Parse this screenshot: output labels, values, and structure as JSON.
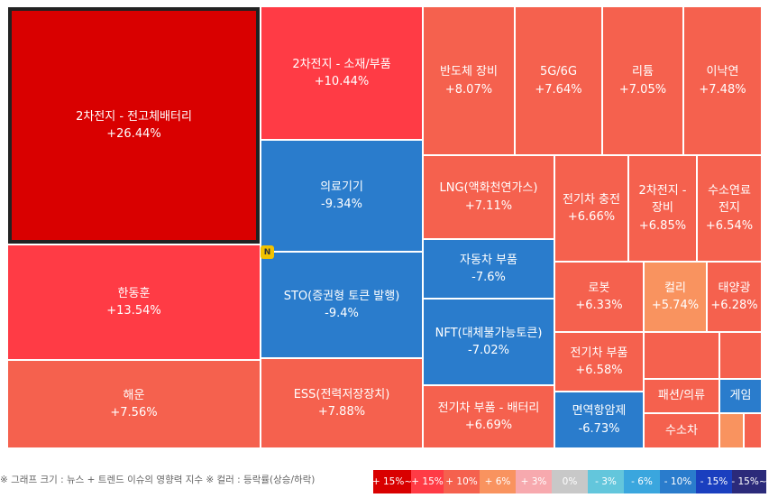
{
  "chart_data": {
    "type": "treemap",
    "tiles": [
      {
        "name": "2차전지 - 전고체배터리",
        "change": "+26.44%",
        "value": 26.44,
        "color": "#d90000",
        "selected": true
      },
      {
        "name": "2차전지 - 소재/부품",
        "change": "+10.44%",
        "value": 10.44,
        "color": "#ff3b45"
      },
      {
        "name": "반도체 장비",
        "change": "+8.07%",
        "value": 8.07,
        "color": "#f5614e"
      },
      {
        "name": "5G/6G",
        "change": "+7.64%",
        "value": 7.64,
        "color": "#f5614e"
      },
      {
        "name": "리튬",
        "change": "+7.05%",
        "value": 7.05,
        "color": "#f5614e"
      },
      {
        "name": "이낙연",
        "change": "+7.48%",
        "value": 7.48,
        "color": "#f5614e"
      },
      {
        "name": "의료기기",
        "change": "-9.34%",
        "value": -9.34,
        "color": "#2a7ccc"
      },
      {
        "name": "LNG(액화천연가스)",
        "change": "+7.11%",
        "value": 7.11,
        "color": "#f5614e"
      },
      {
        "name": "전기차 충전",
        "change": "+6.66%",
        "value": 6.66,
        "color": "#f5614e"
      },
      {
        "name": "2차전지 - 장비",
        "change": "+6.85%",
        "value": 6.85,
        "color": "#f5614e"
      },
      {
        "name": "수소연료 전지",
        "change": "+6.54%",
        "value": 6.54,
        "color": "#f5614e"
      },
      {
        "name": "한동훈",
        "change": "+13.54%",
        "value": 13.54,
        "color": "#ff3b45"
      },
      {
        "name": "STO(증권형 토큰 발행)",
        "change": "-9.4%",
        "value": -9.4,
        "color": "#2a7ccc",
        "badge": "N"
      },
      {
        "name": "자동차 부품",
        "change": "-7.6%",
        "value": -7.6,
        "color": "#2a7ccc"
      },
      {
        "name": "로봇",
        "change": "+6.33%",
        "value": 6.33,
        "color": "#f5614e"
      },
      {
        "name": "컬리",
        "change": "+5.74%",
        "value": 5.74,
        "color": "#f9935f"
      },
      {
        "name": "태양광",
        "change": "+6.28%",
        "value": 6.28,
        "color": "#f5614e"
      },
      {
        "name": "NFT(대체불가능토큰)",
        "change": "-7.02%",
        "value": -7.02,
        "color": "#2a7ccc"
      },
      {
        "name": "전기차 부품",
        "change": "+6.58%",
        "value": 6.58,
        "color": "#f5614e"
      },
      {
        "name": "해운",
        "change": "+7.56%",
        "value": 7.56,
        "color": "#f5614e"
      },
      {
        "name": "ESS(전력저장장치)",
        "change": "+7.88%",
        "value": 7.88,
        "color": "#f5614e"
      },
      {
        "name": "전기차 부품 - 배터리",
        "change": "+6.69%",
        "value": 6.69,
        "color": "#f5614e"
      },
      {
        "name": "면역항암제",
        "change": "-6.73%",
        "value": -6.73,
        "color": "#2a7ccc"
      },
      {
        "name": "패션/의류",
        "change": "",
        "color": "#f5614e"
      },
      {
        "name": "게임",
        "change": "",
        "color": "#2a7ccc"
      },
      {
        "name": "수소차",
        "change": "",
        "color": "#f5614e"
      },
      {
        "name": "",
        "change": "",
        "color": "#f5614e"
      },
      {
        "name": "",
        "change": "",
        "color": "#f5614e"
      },
      {
        "name": "",
        "change": "",
        "color": "#f9935f"
      },
      {
        "name": "",
        "change": "",
        "color": "#f5614e"
      }
    ],
    "footnote": "※ 그래프 크기 : 뉴스 + 트렌드 이슈의 영향력 지수 ※ 컬러 : 등락률(상승/하락)",
    "legend": [
      {
        "label": "+ 15%~",
        "color": "#d90000"
      },
      {
        "label": "+ 15%",
        "color": "#ff3b45"
      },
      {
        "label": "+ 10%",
        "color": "#f5614e"
      },
      {
        "label": "+ 6%",
        "color": "#f9935f"
      },
      {
        "label": "+ 3%",
        "color": "#f7a9ae"
      },
      {
        "label": "0%",
        "color": "#c8c8c8"
      },
      {
        "label": "- 3%",
        "color": "#63c6dc"
      },
      {
        "label": "- 6%",
        "color": "#3aa6de"
      },
      {
        "label": "- 10%",
        "color": "#2a7ccc"
      },
      {
        "label": "- 15%",
        "color": "#1a3fbf"
      },
      {
        "label": "- 15%~",
        "color": "#2b2a7a"
      }
    ]
  }
}
